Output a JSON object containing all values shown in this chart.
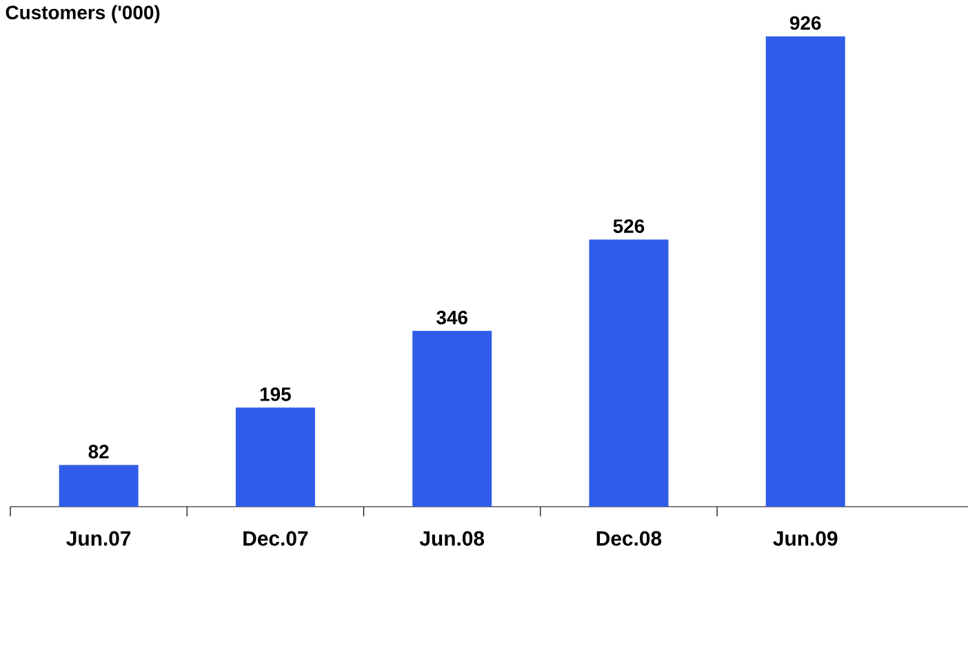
{
  "chart_data": {
    "type": "bar",
    "title": "Customers ('000)",
    "categories": [
      "Jun.07",
      "Dec.07",
      "Jun.08",
      "Dec.08",
      "Jun.09"
    ],
    "values": [
      82,
      195,
      346,
      526,
      926
    ],
    "color": "#2f5ce8",
    "data_labels": true,
    "tick_labels": "x"
  }
}
